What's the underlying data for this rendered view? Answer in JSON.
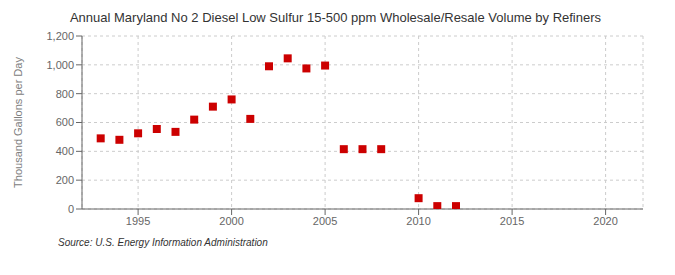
{
  "chart_data": {
    "type": "scatter",
    "title": "Annual Maryland No 2 Diesel Low Sulfur 15-500 ppm Wholesale/Resale Volume by Refiners",
    "ylabel": "Thousand Gallons per Day",
    "annotations": [
      "Source: U.S. Energy Information Administration"
    ],
    "x": [
      1993,
      1994,
      1995,
      1996,
      1997,
      1998,
      1999,
      2000,
      2001,
      2002,
      2003,
      2004,
      2005,
      2006,
      2007,
      2008,
      2010,
      2011,
      2012
    ],
    "values": [
      490,
      480,
      525,
      555,
      535,
      620,
      710,
      760,
      625,
      990,
      1045,
      975,
      995,
      415,
      415,
      415,
      75,
      20,
      20
    ],
    "color": "#cc0000",
    "marker": "square",
    "xlim": [
      1992,
      2022
    ],
    "xticks": [
      1995,
      2000,
      2005,
      2010,
      2015,
      2020
    ],
    "ylim": [
      0,
      1200
    ],
    "yticks": [
      0,
      200,
      400,
      600,
      800,
      {
        "value": 1000,
        "label": "1,000"
      },
      {
        "value": 1200,
        "label": "1,200"
      }
    ],
    "grid": true
  }
}
